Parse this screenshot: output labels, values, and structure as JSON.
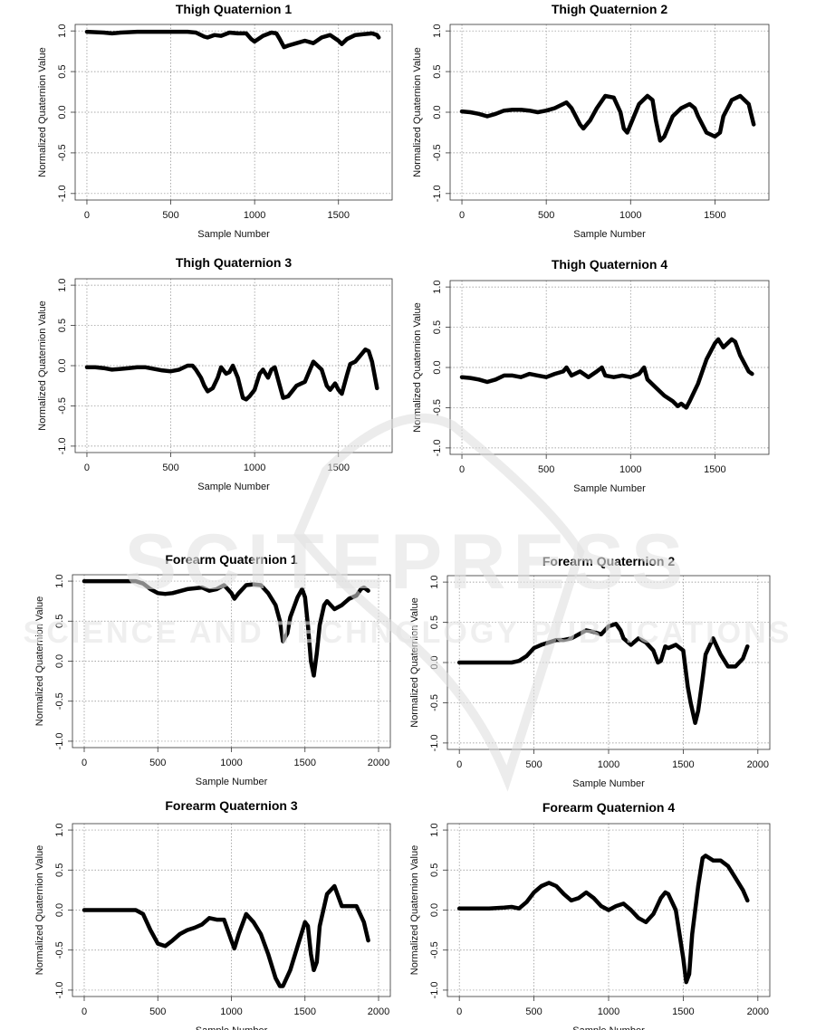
{
  "watermark": {
    "brand": "SCITEPRESS",
    "tagline": "SCIENCE AND TECHNOLOGY PUBLICATIONS"
  },
  "chart_data": [
    {
      "type": "line",
      "title": "Thigh Quaternion 1",
      "xlabel": "Sample Number",
      "ylabel": "Normalized Quaternion Value",
      "xlim": [
        0,
        1750
      ],
      "ylim": [
        -1,
        1
      ],
      "xticks": [
        0,
        500,
        1000,
        1500
      ],
      "yticks": [
        -1.0,
        -0.5,
        0.0,
        0.5,
        1.0
      ],
      "grid": true,
      "x": [
        0,
        100,
        150,
        200,
        300,
        400,
        500,
        600,
        650,
        700,
        720,
        760,
        800,
        850,
        900,
        950,
        980,
        1000,
        1050,
        1100,
        1130,
        1150,
        1175,
        1200,
        1250,
        1300,
        1350,
        1400,
        1450,
        1500,
        1520,
        1550,
        1600,
        1650,
        1700,
        1730,
        1740
      ],
      "y": [
        0.99,
        0.98,
        0.97,
        0.98,
        0.99,
        0.99,
        0.99,
        0.99,
        0.98,
        0.93,
        0.92,
        0.95,
        0.94,
        0.98,
        0.97,
        0.97,
        0.9,
        0.87,
        0.94,
        0.98,
        0.97,
        0.9,
        0.8,
        0.82,
        0.85,
        0.88,
        0.85,
        0.92,
        0.95,
        0.88,
        0.84,
        0.9,
        0.95,
        0.96,
        0.97,
        0.95,
        0.92
      ]
    },
    {
      "type": "line",
      "title": "Thigh Quaternion 2",
      "xlabel": "Sample Number",
      "ylabel": "Normalized Quaternion Value",
      "xlim": [
        0,
        1750
      ],
      "ylim": [
        -1,
        1
      ],
      "xticks": [
        0,
        500,
        1000,
        1500
      ],
      "yticks": [
        -1.0,
        -0.5,
        0.0,
        0.5,
        1.0
      ],
      "grid": true,
      "x": [
        0,
        50,
        100,
        150,
        200,
        250,
        300,
        350,
        400,
        450,
        500,
        550,
        600,
        620,
        650,
        700,
        720,
        760,
        800,
        850,
        900,
        940,
        960,
        980,
        1000,
        1050,
        1100,
        1130,
        1150,
        1175,
        1200,
        1250,
        1300,
        1350,
        1380,
        1400,
        1450,
        1500,
        1530,
        1550,
        1600,
        1650,
        1700,
        1730
      ],
      "y": [
        0.01,
        0.0,
        -0.02,
        -0.05,
        -0.02,
        0.02,
        0.03,
        0.03,
        0.02,
        0.0,
        0.02,
        0.05,
        0.1,
        0.12,
        0.05,
        -0.15,
        -0.2,
        -0.1,
        0.05,
        0.2,
        0.18,
        0.0,
        -0.2,
        -0.25,
        -0.15,
        0.1,
        0.2,
        0.15,
        -0.1,
        -0.35,
        -0.3,
        -0.05,
        0.05,
        0.1,
        0.05,
        -0.05,
        -0.25,
        -0.3,
        -0.25,
        -0.05,
        0.15,
        0.2,
        0.1,
        -0.15
      ]
    },
    {
      "type": "line",
      "title": "Thigh Quaternion 3",
      "xlabel": "Sample Number",
      "ylabel": "Normalized Quaternion Value",
      "xlim": [
        0,
        1750
      ],
      "ylim": [
        -1,
        1
      ],
      "xticks": [
        0,
        500,
        1000,
        1500
      ],
      "yticks": [
        -1.0,
        -0.5,
        0.0,
        0.5,
        1.0
      ],
      "grid": true,
      "x": [
        0,
        50,
        100,
        150,
        200,
        250,
        300,
        350,
        400,
        450,
        500,
        550,
        600,
        630,
        650,
        680,
        700,
        720,
        750,
        780,
        800,
        830,
        850,
        870,
        900,
        930,
        950,
        970,
        1000,
        1030,
        1050,
        1080,
        1100,
        1120,
        1150,
        1170,
        1200,
        1250,
        1300,
        1330,
        1350,
        1400,
        1430,
        1450,
        1480,
        1500,
        1520,
        1550,
        1570,
        1600,
        1640,
        1660,
        1680,
        1700,
        1730
      ],
      "y": [
        -0.02,
        -0.02,
        -0.03,
        -0.05,
        -0.04,
        -0.03,
        -0.02,
        -0.02,
        -0.04,
        -0.06,
        -0.07,
        -0.05,
        0.0,
        0.0,
        -0.05,
        -0.15,
        -0.25,
        -0.32,
        -0.28,
        -0.15,
        -0.02,
        -0.1,
        -0.08,
        0.0,
        -0.15,
        -0.4,
        -0.42,
        -0.38,
        -0.3,
        -0.1,
        -0.05,
        -0.15,
        -0.05,
        -0.02,
        -0.25,
        -0.4,
        -0.38,
        -0.25,
        -0.2,
        -0.05,
        0.05,
        -0.05,
        -0.25,
        -0.3,
        -0.22,
        -0.3,
        -0.35,
        -0.12,
        0.02,
        0.05,
        0.15,
        0.2,
        0.18,
        0.05,
        -0.28
      ]
    },
    {
      "type": "line",
      "title": "Thigh Quaternion 4",
      "xlabel": "Sample Number",
      "ylabel": "Normalized Quaternion Value",
      "xlim": [
        0,
        1750
      ],
      "ylim": [
        -1,
        1
      ],
      "xticks": [
        0,
        500,
        1000,
        1500
      ],
      "yticks": [
        -1.0,
        -0.5,
        0.0,
        0.5,
        1.0
      ],
      "grid": true,
      "x": [
        0,
        50,
        100,
        150,
        200,
        250,
        300,
        350,
        400,
        450,
        500,
        550,
        600,
        620,
        650,
        700,
        750,
        800,
        830,
        850,
        900,
        950,
        1000,
        1050,
        1080,
        1100,
        1150,
        1200,
        1250,
        1280,
        1300,
        1330,
        1350,
        1400,
        1450,
        1500,
        1520,
        1550,
        1600,
        1620,
        1650,
        1700,
        1720
      ],
      "y": [
        -0.12,
        -0.13,
        -0.15,
        -0.18,
        -0.15,
        -0.1,
        -0.1,
        -0.12,
        -0.08,
        -0.1,
        -0.12,
        -0.08,
        -0.05,
        0.0,
        -0.1,
        -0.05,
        -0.12,
        -0.05,
        0.0,
        -0.1,
        -0.12,
        -0.1,
        -0.12,
        -0.08,
        0.0,
        -0.15,
        -0.25,
        -0.35,
        -0.42,
        -0.48,
        -0.45,
        -0.5,
        -0.42,
        -0.2,
        0.1,
        0.3,
        0.35,
        0.25,
        0.35,
        0.32,
        0.15,
        -0.05,
        -0.08
      ]
    },
    {
      "type": "line",
      "title": "Forearm Quaternion 1",
      "xlabel": "Sample Number",
      "ylabel": "Normalized Quaternion Value",
      "xlim": [
        0,
        2000
      ],
      "ylim": [
        -1,
        1
      ],
      "xticks": [
        0,
        500,
        1000,
        1500,
        2000
      ],
      "yticks": [
        -1.0,
        -0.5,
        0.0,
        0.5,
        1.0
      ],
      "grid": true,
      "x": [
        0,
        100,
        200,
        300,
        350,
        400,
        450,
        500,
        550,
        600,
        700,
        800,
        850,
        900,
        950,
        1000,
        1020,
        1050,
        1100,
        1150,
        1200,
        1250,
        1300,
        1330,
        1350,
        1380,
        1400,
        1450,
        1480,
        1500,
        1520,
        1540,
        1560,
        1580,
        1600,
        1630,
        1650,
        1700,
        1750,
        1800,
        1850,
        1880,
        1900,
        1930
      ],
      "y": [
        1.0,
        1.0,
        1.0,
        1.0,
        1.0,
        0.97,
        0.9,
        0.85,
        0.84,
        0.85,
        0.9,
        0.92,
        0.88,
        0.9,
        0.95,
        0.85,
        0.78,
        0.85,
        0.95,
        0.96,
        0.95,
        0.85,
        0.7,
        0.5,
        0.25,
        0.35,
        0.55,
        0.8,
        0.9,
        0.8,
        0.45,
        0.0,
        -0.18,
        0.1,
        0.45,
        0.7,
        0.75,
        0.65,
        0.7,
        0.78,
        0.82,
        0.9,
        0.92,
        0.88
      ]
    },
    {
      "type": "line",
      "title": "Forearm Quaternion 2",
      "xlabel": "Sample Number",
      "ylabel": "Normalized Quaternion Value",
      "xlim": [
        0,
        2000
      ],
      "ylim": [
        -1,
        1
      ],
      "xticks": [
        0,
        500,
        1000,
        1500,
        2000
      ],
      "yticks": [
        -1.0,
        -0.5,
        0.0,
        0.5,
        1.0
      ],
      "grid": true,
      "x": [
        0,
        100,
        200,
        300,
        350,
        400,
        450,
        500,
        550,
        600,
        650,
        700,
        750,
        800,
        850,
        900,
        950,
        1000,
        1050,
        1080,
        1100,
        1150,
        1200,
        1250,
        1300,
        1330,
        1350,
        1380,
        1400,
        1450,
        1500,
        1530,
        1550,
        1580,
        1600,
        1630,
        1650,
        1700,
        1750,
        1800,
        1850,
        1900,
        1930
      ],
      "y": [
        0.0,
        0.0,
        0.0,
        0.0,
        0.0,
        0.02,
        0.08,
        0.18,
        0.22,
        0.25,
        0.28,
        0.28,
        0.3,
        0.35,
        0.4,
        0.38,
        0.35,
        0.45,
        0.48,
        0.4,
        0.3,
        0.22,
        0.3,
        0.25,
        0.15,
        0.0,
        0.02,
        0.2,
        0.18,
        0.22,
        0.15,
        -0.3,
        -0.5,
        -0.75,
        -0.6,
        -0.2,
        0.1,
        0.3,
        0.1,
        -0.05,
        -0.05,
        0.05,
        0.2
      ]
    },
    {
      "type": "line",
      "title": "Forearm Quaternion 3",
      "xlabel": "Sample Number",
      "ylabel": "Normalized Quaternion Value",
      "xlim": [
        0,
        2000
      ],
      "ylim": [
        -1,
        1
      ],
      "xticks": [
        0,
        500,
        1000,
        1500,
        2000
      ],
      "yticks": [
        -1.0,
        -0.5,
        0.0,
        0.5,
        1.0
      ],
      "grid": true,
      "x": [
        0,
        100,
        200,
        300,
        350,
        400,
        450,
        500,
        550,
        600,
        650,
        700,
        750,
        800,
        850,
        900,
        950,
        1000,
        1020,
        1050,
        1100,
        1150,
        1200,
        1250,
        1300,
        1330,
        1350,
        1400,
        1450,
        1500,
        1520,
        1540,
        1560,
        1580,
        1600,
        1650,
        1700,
        1750,
        1800,
        1850,
        1900,
        1930
      ],
      "y": [
        0.0,
        0.0,
        0.0,
        0.0,
        0.0,
        -0.05,
        -0.25,
        -0.42,
        -0.45,
        -0.38,
        -0.3,
        -0.25,
        -0.22,
        -0.18,
        -0.1,
        -0.12,
        -0.12,
        -0.38,
        -0.48,
        -0.3,
        -0.05,
        -0.15,
        -0.3,
        -0.55,
        -0.85,
        -0.95,
        -0.95,
        -0.75,
        -0.45,
        -0.15,
        -0.2,
        -0.55,
        -0.75,
        -0.65,
        -0.2,
        0.2,
        0.3,
        0.05,
        0.05,
        0.05,
        -0.15,
        -0.38
      ]
    },
    {
      "type": "line",
      "title": "Forearm Quaternion 4",
      "xlabel": "Sample Number",
      "ylabel": "Normalized Quaternion Value",
      "xlim": [
        0,
        2000
      ],
      "ylim": [
        -1,
        1
      ],
      "xticks": [
        0,
        500,
        1000,
        1500,
        2000
      ],
      "yticks": [
        -1.0,
        -0.5,
        0.0,
        0.5,
        1.0
      ],
      "grid": true,
      "x": [
        0,
        100,
        200,
        300,
        350,
        400,
        450,
        500,
        550,
        600,
        650,
        700,
        750,
        800,
        850,
        900,
        950,
        1000,
        1050,
        1100,
        1150,
        1200,
        1250,
        1300,
        1350,
        1380,
        1400,
        1450,
        1500,
        1520,
        1540,
        1560,
        1600,
        1630,
        1650,
        1700,
        1750,
        1800,
        1850,
        1900,
        1930
      ],
      "y": [
        0.02,
        0.02,
        0.02,
        0.03,
        0.04,
        0.02,
        0.1,
        0.22,
        0.3,
        0.34,
        0.3,
        0.2,
        0.12,
        0.15,
        0.22,
        0.15,
        0.05,
        0.0,
        0.05,
        0.08,
        0.0,
        -0.1,
        -0.15,
        -0.05,
        0.15,
        0.22,
        0.2,
        0.0,
        -0.6,
        -0.9,
        -0.8,
        -0.3,
        0.3,
        0.65,
        0.68,
        0.62,
        0.62,
        0.55,
        0.4,
        0.25,
        0.12
      ]
    }
  ]
}
